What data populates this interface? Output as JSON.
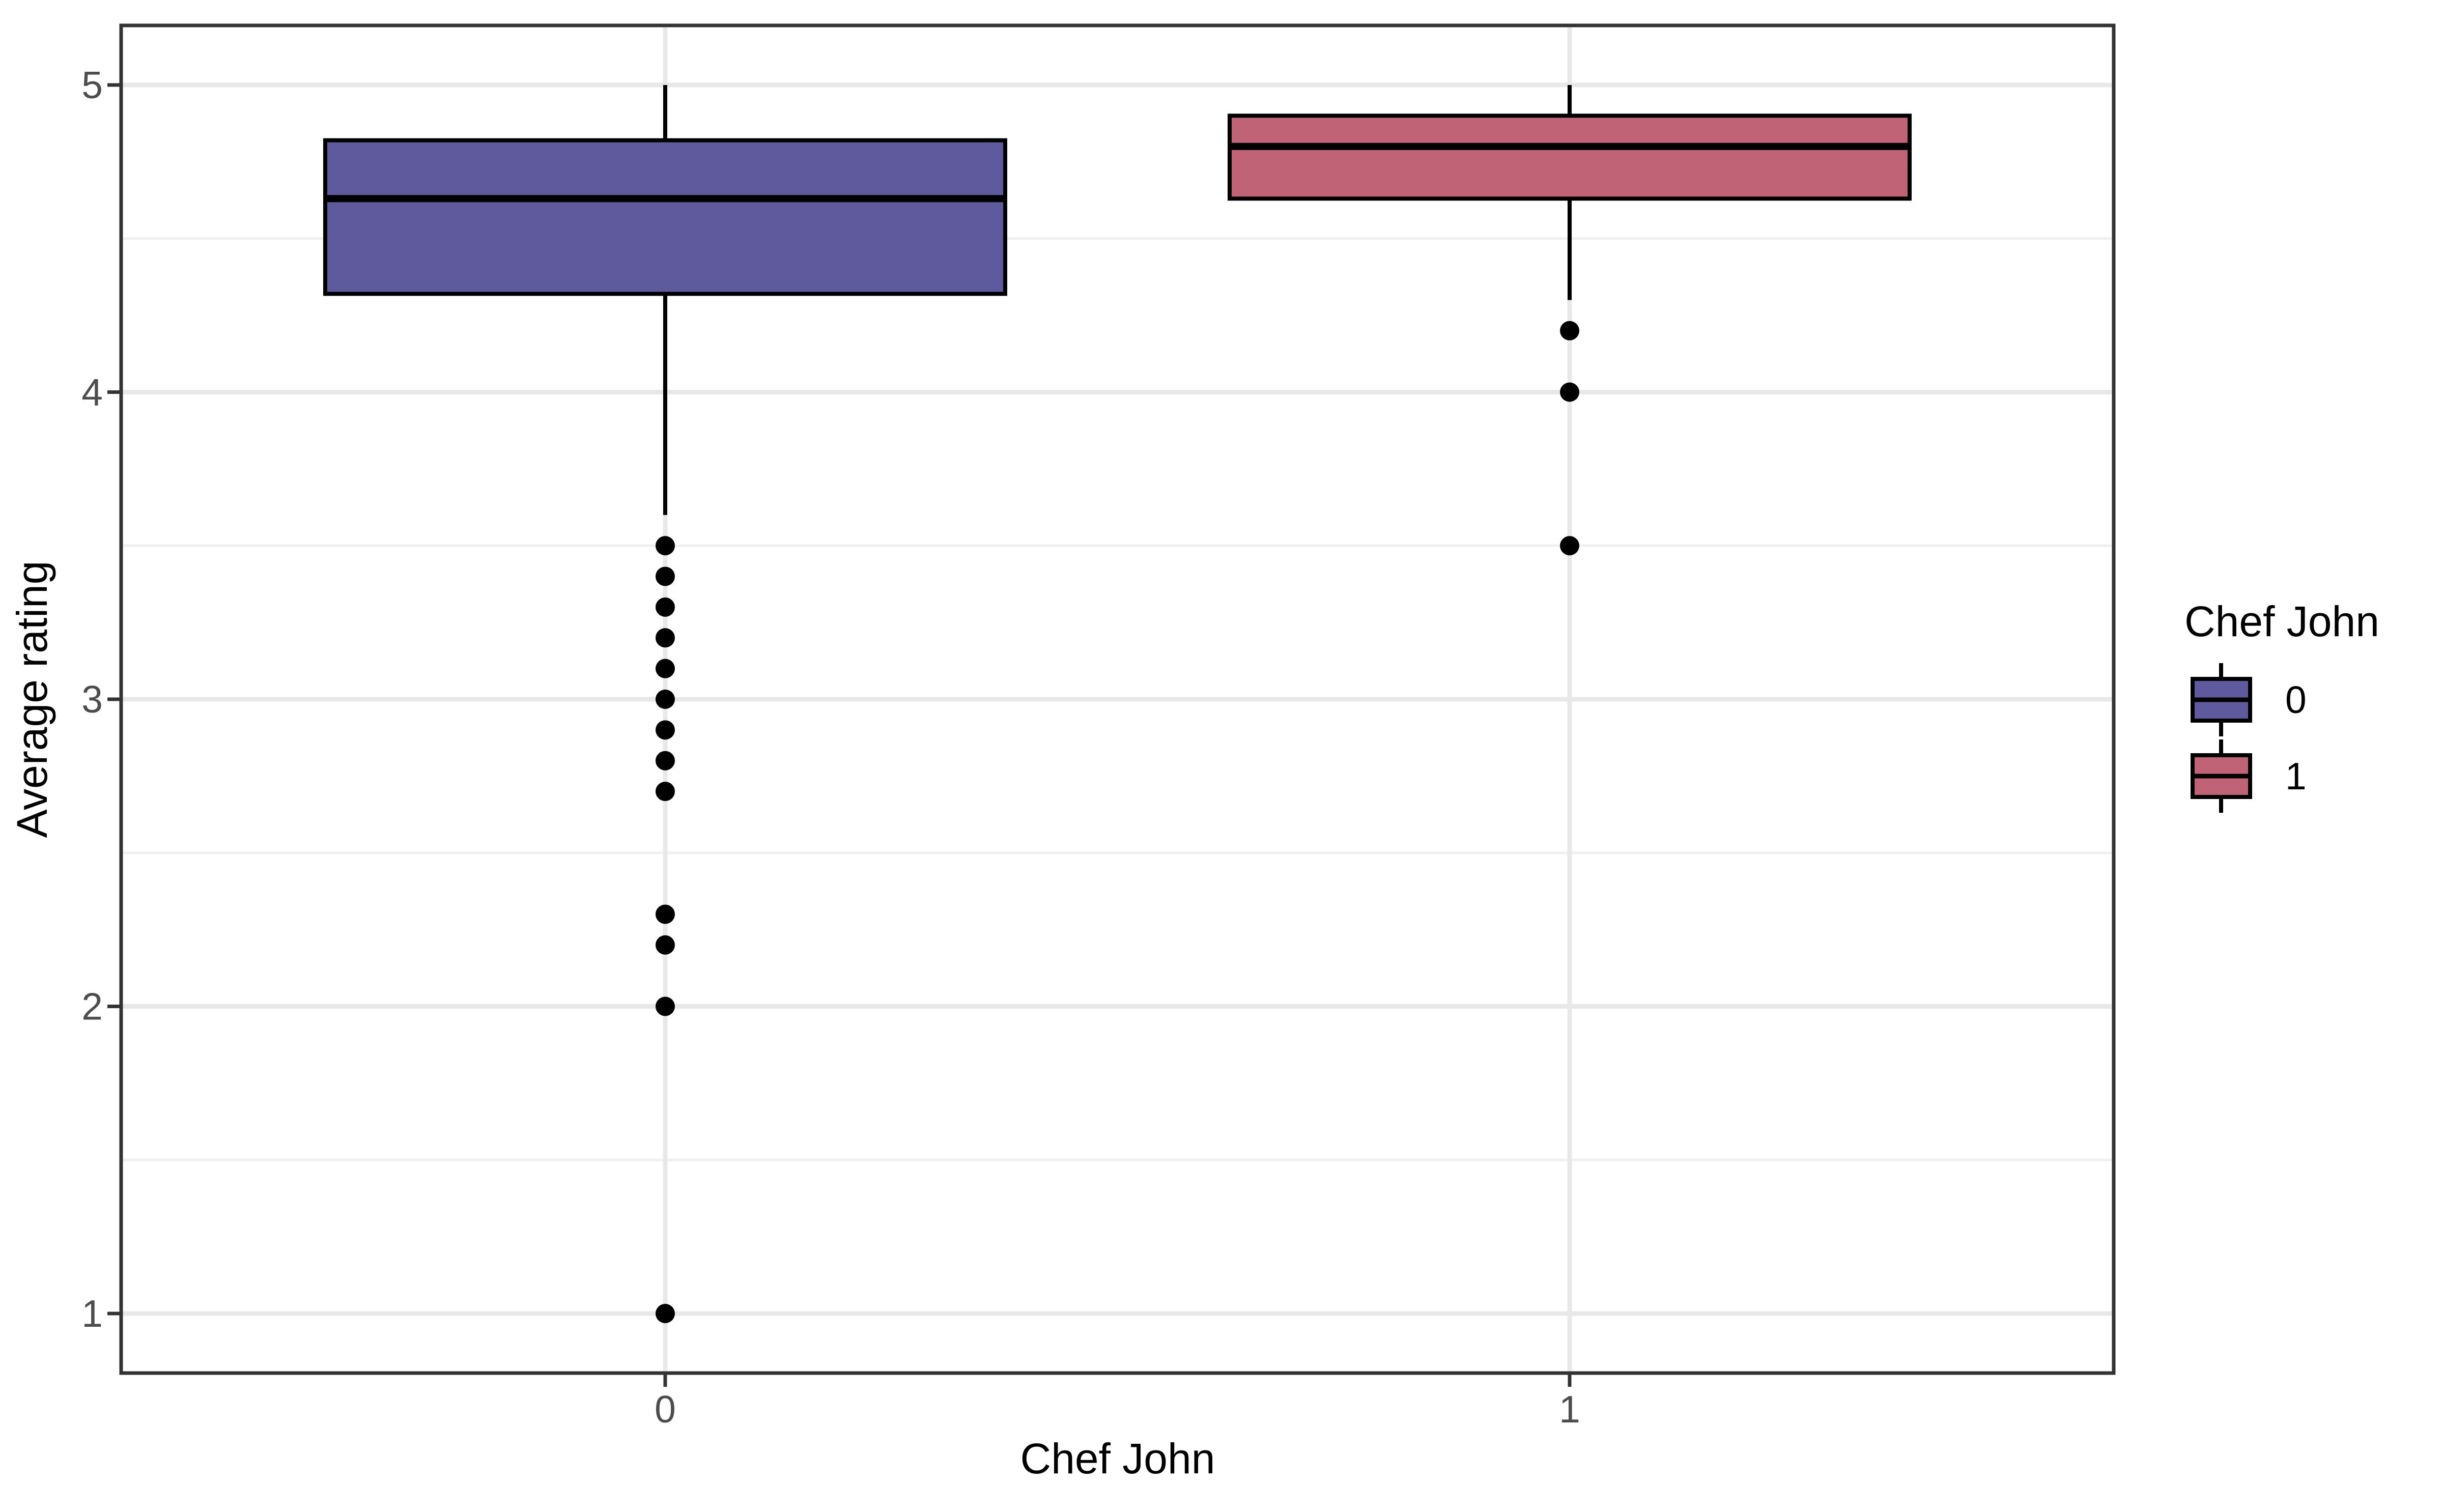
{
  "chart_data": {
    "type": "boxplot",
    "title": "",
    "xlabel": "Chef John",
    "ylabel": "Average rating",
    "categories": [
      "0",
      "1"
    ],
    "y_ticks": [
      1,
      2,
      3,
      4,
      5
    ],
    "ylim": [
      0.81,
      5.19
    ],
    "grid": {
      "major_color": "#E8E8E8",
      "minor_color": "#F0F0F0",
      "minor_ticks": [
        1.5,
        2.5,
        3.5,
        4.5
      ],
      "vertical_major_at_categories": true
    },
    "series": [
      {
        "category": "0",
        "fill_color": "#5E5A9D",
        "stroke_color": "#000000",
        "whisker_low": 3.6,
        "q1": 4.32,
        "median": 4.63,
        "q3": 4.82,
        "whisker_high": 5.0,
        "outliers": [
          3.5,
          3.4,
          3.3,
          3.2,
          3.1,
          3.0,
          2.9,
          2.8,
          2.7,
          2.3,
          2.2,
          2.0,
          1.0
        ]
      },
      {
        "category": "1",
        "fill_color": "#C16377",
        "stroke_color": "#000000",
        "whisker_low": 4.3,
        "q1": 4.63,
        "median": 4.8,
        "q3": 4.9,
        "whisker_high": 5.0,
        "outliers": [
          4.2,
          4.0,
          3.5
        ]
      }
    ],
    "legend": {
      "title": "Chef John",
      "position": "right",
      "entries": [
        {
          "label": "0",
          "color": "#5E5A9D"
        },
        {
          "label": "1",
          "color": "#C16377"
        }
      ]
    },
    "style": {
      "panel_border_color": "#333333",
      "tick_color": "#333333",
      "tick_text_color": "#4D4D4D",
      "background": "#FFFFFF"
    }
  }
}
